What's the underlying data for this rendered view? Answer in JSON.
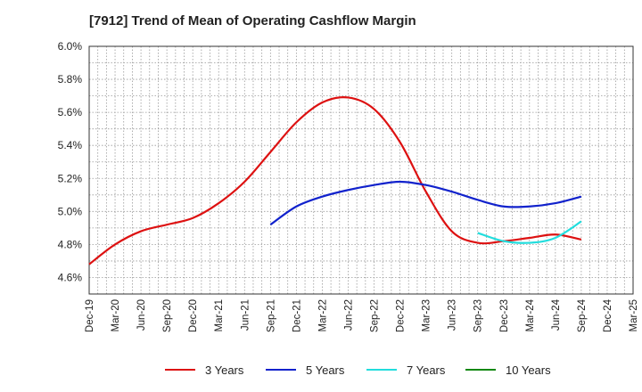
{
  "chart_data": {
    "type": "line",
    "title": "[7912]  Trend of Mean of Operating Cashflow Margin",
    "xlabel": "",
    "ylabel": "",
    "ylim": [
      4.5,
      6.0
    ],
    "y_ticks": [
      "6.0%",
      "5.8%",
      "5.6%",
      "5.4%",
      "5.2%",
      "5.0%",
      "4.8%",
      "4.6%"
    ],
    "y_tick_values": [
      6.0,
      5.8,
      5.6,
      5.4,
      5.2,
      5.0,
      4.8,
      4.6
    ],
    "x_tick_labels": [
      "Dec-19",
      "Mar-20",
      "Jun-20",
      "Sep-20",
      "Dec-20",
      "Mar-21",
      "Jun-21",
      "Sep-21",
      "Dec-21",
      "Mar-22",
      "Jun-22",
      "Sep-22",
      "Dec-22",
      "Mar-23",
      "Jun-23",
      "Sep-23",
      "Dec-23",
      "Mar-24",
      "Jun-24",
      "Sep-24",
      "Dec-24",
      "Mar-25"
    ],
    "grid": true,
    "legend_position": "bottom",
    "series": [
      {
        "name": "3 Years",
        "color": "#dd1111",
        "points": [
          [
            0,
            4.68
          ],
          [
            1,
            4.8
          ],
          [
            2,
            4.88
          ],
          [
            3,
            4.92
          ],
          [
            4,
            4.96
          ],
          [
            5,
            5.05
          ],
          [
            6,
            5.18
          ],
          [
            7,
            5.36
          ],
          [
            8,
            5.54
          ],
          [
            9,
            5.66
          ],
          [
            10,
            5.69
          ],
          [
            11,
            5.62
          ],
          [
            12,
            5.42
          ],
          [
            13,
            5.12
          ],
          [
            14,
            4.88
          ],
          [
            15,
            4.81
          ],
          [
            16,
            4.82
          ],
          [
            17,
            4.84
          ],
          [
            18,
            4.86
          ],
          [
            19,
            4.83
          ]
        ]
      },
      {
        "name": "5 Years",
        "color": "#1122cc",
        "points": [
          [
            7,
            4.92
          ],
          [
            8,
            5.03
          ],
          [
            9,
            5.09
          ],
          [
            10,
            5.13
          ],
          [
            11,
            5.16
          ],
          [
            12,
            5.18
          ],
          [
            13,
            5.16
          ],
          [
            14,
            5.12
          ],
          [
            15,
            5.07
          ],
          [
            16,
            5.03
          ],
          [
            17,
            5.03
          ],
          [
            18,
            5.05
          ],
          [
            19,
            5.09
          ]
        ]
      },
      {
        "name": "7 Years",
        "color": "#22dddd",
        "points": [
          [
            15,
            4.87
          ],
          [
            16,
            4.82
          ],
          [
            17,
            4.81
          ],
          [
            18,
            4.84
          ],
          [
            19,
            4.94
          ]
        ]
      },
      {
        "name": "10 Years",
        "color": "#118811",
        "points": []
      }
    ]
  }
}
